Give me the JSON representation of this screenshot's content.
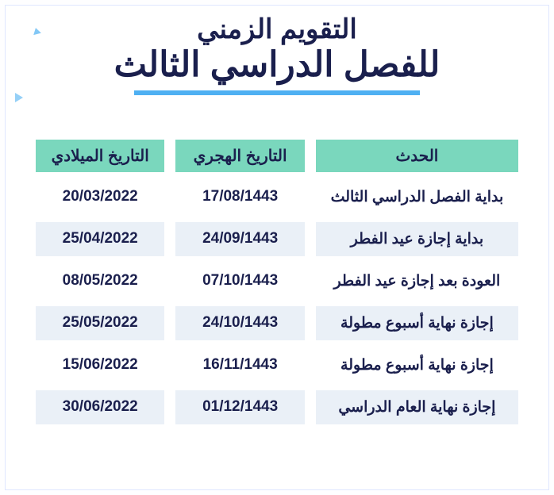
{
  "colors": {
    "title": "#1a1f4d",
    "accent2": "#4fb0f2",
    "header_bg": "#7ad7bd",
    "header_fg": "#1a1f4d",
    "cell_fg": "#1a1f4d",
    "row_alt_bg": "#eaf0f7"
  },
  "title": {
    "line1": "التقويم الزمني",
    "line2": "للفصل الدراسي الثالث"
  },
  "table": {
    "columns": [
      "الحدث",
      "التاريخ الهجري",
      "التاريخ الميلادي"
    ],
    "rows": [
      {
        "event": "بداية الفصل الدراسي الثالث",
        "hijri": "17/08/1443",
        "greg": "20/03/2022",
        "alt": false
      },
      {
        "event": "بداية إجازة عيد الفطر",
        "hijri": "24/09/1443",
        "greg": "25/04/2022",
        "alt": true
      },
      {
        "event": "العودة بعد إجازة عيد الفطر",
        "hijri": "07/10/1443",
        "greg": "08/05/2022",
        "alt": false
      },
      {
        "event": "إجازة نهاية أسبوع مطولة",
        "hijri": "24/10/1443",
        "greg": "25/05/2022",
        "alt": true
      },
      {
        "event": "إجازة نهاية أسبوع مطولة",
        "hijri": "16/11/1443",
        "greg": "15/06/2022",
        "alt": false
      },
      {
        "event": "إجازة نهاية العام الدراسي",
        "hijri": "01/12/1443",
        "greg": "30/06/2022",
        "alt": true
      }
    ]
  }
}
